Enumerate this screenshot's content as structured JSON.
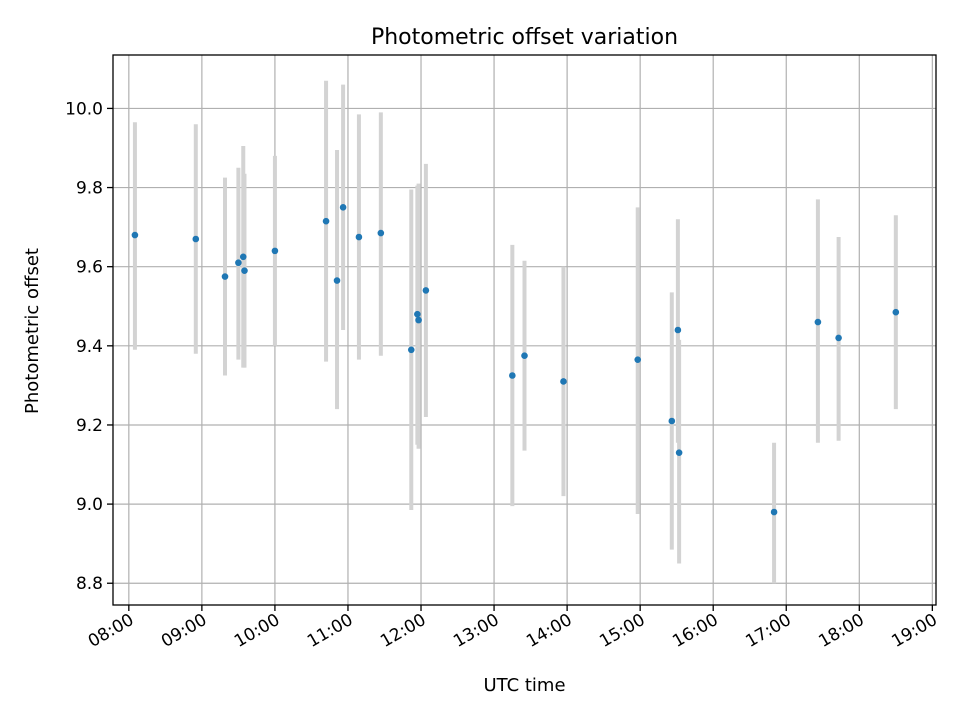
{
  "chart_data": {
    "type": "scatter",
    "title": "Photometric offset variation",
    "xlabel": "UTC time",
    "ylabel": "Photometric offset",
    "x_unit": "UTC time (HH:MM)",
    "xlim": [
      "07:47",
      "19:03"
    ],
    "ylim": [
      8.745,
      10.135
    ],
    "xticks": [
      "08:00",
      "09:00",
      "10:00",
      "11:00",
      "12:00",
      "13:00",
      "14:00",
      "15:00",
      "16:00",
      "17:00",
      "18:00",
      "19:00"
    ],
    "yticks": [
      8.8,
      9.0,
      9.2,
      9.4,
      9.6,
      9.8,
      10.0
    ],
    "ytick_labels": [
      "8.8",
      "9.0",
      "9.2",
      "9.4",
      "9.6",
      "9.8",
      "10.0"
    ],
    "grid": true,
    "marker_color": "#1f77b4",
    "errorbar_color": "#d3d3d3",
    "points": [
      {
        "x": "08:05",
        "y": 9.68,
        "ylow": 9.39,
        "yhigh": 9.965
      },
      {
        "x": "08:55",
        "y": 9.67,
        "ylow": 9.38,
        "yhigh": 9.96
      },
      {
        "x": "09:19",
        "y": 9.575,
        "ylow": 9.325,
        "yhigh": 9.825
      },
      {
        "x": "09:30",
        "y": 9.61,
        "ylow": 9.365,
        "yhigh": 9.85
      },
      {
        "x": "09:34",
        "y": 9.625,
        "ylow": 9.345,
        "yhigh": 9.905
      },
      {
        "x": "09:35",
        "y": 9.59,
        "ylow": 9.345,
        "yhigh": 9.835
      },
      {
        "x": "10:00",
        "y": 9.64,
        "ylow": 9.4,
        "yhigh": 9.88
      },
      {
        "x": "10:42",
        "y": 9.715,
        "ylow": 9.36,
        "yhigh": 10.07
      },
      {
        "x": "10:51",
        "y": 9.565,
        "ylow": 9.24,
        "yhigh": 9.895
      },
      {
        "x": "10:56",
        "y": 9.75,
        "ylow": 9.44,
        "yhigh": 10.06
      },
      {
        "x": "11:09",
        "y": 9.675,
        "ylow": 9.365,
        "yhigh": 9.985
      },
      {
        "x": "11:27",
        "y": 9.685,
        "ylow": 9.375,
        "yhigh": 9.99
      },
      {
        "x": "11:52",
        "y": 9.39,
        "ylow": 8.985,
        "yhigh": 9.795
      },
      {
        "x": "11:57",
        "y": 9.48,
        "ylow": 9.15,
        "yhigh": 9.805
      },
      {
        "x": "11:58",
        "y": 9.465,
        "ylow": 9.14,
        "yhigh": 9.81
      },
      {
        "x": "12:04",
        "y": 9.54,
        "ylow": 9.22,
        "yhigh": 9.86
      },
      {
        "x": "13:15",
        "y": 9.325,
        "ylow": 8.995,
        "yhigh": 9.655
      },
      {
        "x": "13:25",
        "y": 9.375,
        "ylow": 9.135,
        "yhigh": 9.615
      },
      {
        "x": "13:57",
        "y": 9.31,
        "ylow": 9.02,
        "yhigh": 9.6
      },
      {
        "x": "14:58",
        "y": 9.365,
        "ylow": 8.975,
        "yhigh": 9.75
      },
      {
        "x": "15:26",
        "y": 9.21,
        "ylow": 8.885,
        "yhigh": 9.535
      },
      {
        "x": "15:31",
        "y": 9.44,
        "ylow": 9.155,
        "yhigh": 9.72
      },
      {
        "x": "15:32",
        "y": 9.13,
        "ylow": 8.85,
        "yhigh": 9.415
      },
      {
        "x": "16:50",
        "y": 8.98,
        "ylow": 8.8,
        "yhigh": 9.155
      },
      {
        "x": "17:26",
        "y": 9.46,
        "ylow": 9.155,
        "yhigh": 9.77
      },
      {
        "x": "17:43",
        "y": 9.42,
        "ylow": 9.16,
        "yhigh": 9.675
      },
      {
        "x": "18:30",
        "y": 9.485,
        "ylow": 9.24,
        "yhigh": 9.73
      }
    ]
  }
}
